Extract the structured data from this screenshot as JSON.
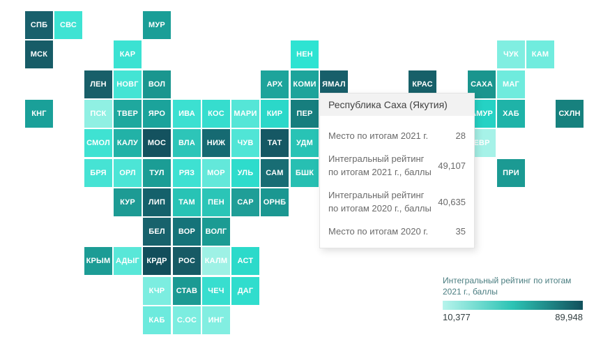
{
  "chart_data": {
    "type": "heatmap",
    "subtype": "tile-grid-cartogram",
    "title": "",
    "legend": {
      "label": "Интегральный рейтинг по итогам 2021 г., баллы",
      "min": "10,377",
      "max": "89,948",
      "position": "bottom-right",
      "gradient": [
        "#b7f4ec",
        "#2cc3b4",
        "#12505c"
      ]
    },
    "encoding": "tile color encodes the 2021 integral rating from min (light) to max (dark)",
    "highlighted_region": {
      "name": "Республика Саха (Якутия)",
      "rank_2021": "28",
      "rating_2021": "49,107",
      "rating_2020": "40,635",
      "rank_2020": "35"
    }
  },
  "map": {
    "tiles": [
      {
        "code": "СПБ",
        "col": 0,
        "row": 0,
        "color": "#19606c"
      },
      {
        "code": "СВС",
        "col": 1,
        "row": 0,
        "color": "#3ee3d3"
      },
      {
        "code": "МУР",
        "col": 4,
        "row": 0,
        "color": "#1a9e97"
      },
      {
        "code": "МСК",
        "col": 0,
        "row": 1,
        "color": "#175c67"
      },
      {
        "code": "КАР",
        "col": 3,
        "row": 1,
        "color": "#3be2d2"
      },
      {
        "code": "НЕН",
        "col": 9,
        "row": 1,
        "color": "#2ee3d2"
      },
      {
        "code": "ЧУК",
        "col": 16,
        "row": 1,
        "color": "#80eee1"
      },
      {
        "code": "КАМ",
        "col": 17,
        "row": 1,
        "color": "#70ecde"
      },
      {
        "code": "ЛЕН",
        "col": 2,
        "row": 2,
        "color": "#185f69"
      },
      {
        "code": "НОВГ",
        "col": 3,
        "row": 2,
        "color": "#44e4d4"
      },
      {
        "code": "ВОЛ",
        "col": 4,
        "row": 2,
        "color": "#1a968f"
      },
      {
        "code": "АРХ",
        "col": 8,
        "row": 2,
        "color": "#1da49b"
      },
      {
        "code": "КОМИ",
        "col": 9,
        "row": 2,
        "color": "#1da49b"
      },
      {
        "code": "ЯМАЛ",
        "col": 10,
        "row": 2,
        "color": "#185f6a"
      },
      {
        "code": "КРАС",
        "col": 13,
        "row": 2,
        "color": "#176069"
      },
      {
        "code": "САХА",
        "col": 15,
        "row": 2,
        "color": "#1a958e"
      },
      {
        "code": "МАГ",
        "col": 16,
        "row": 2,
        "color": "#6febdd"
      },
      {
        "code": "КНГ",
        "col": 0,
        "row": 3,
        "color": "#1aa099"
      },
      {
        "code": "ПСК",
        "col": 2,
        "row": 3,
        "color": "#90f0e3"
      },
      {
        "code": "ТВЕР",
        "col": 3,
        "row": 3,
        "color": "#1fa89e"
      },
      {
        "code": "ЯРО",
        "col": 4,
        "row": 3,
        "color": "#1ba39b"
      },
      {
        "code": "ИВА",
        "col": 5,
        "row": 3,
        "color": "#3ce0d1"
      },
      {
        "code": "КОС",
        "col": 6,
        "row": 3,
        "color": "#36ddce"
      },
      {
        "code": "МАРИ",
        "col": 7,
        "row": 3,
        "color": "#55e6d7"
      },
      {
        "code": "КИР",
        "col": 8,
        "row": 3,
        "color": "#2bd8c9"
      },
      {
        "code": "ПЕР",
        "col": 9,
        "row": 3,
        "color": "#177e7e"
      },
      {
        "code": "АМУР",
        "col": 15,
        "row": 3,
        "color": "#25d2c4"
      },
      {
        "code": "ХАБ",
        "col": 16,
        "row": 3,
        "color": "#1fb3a8"
      },
      {
        "code": "СХЛН",
        "col": 18,
        "row": 3,
        "color": "#17817e"
      },
      {
        "code": "СМОЛ",
        "col": 2,
        "row": 4,
        "color": "#3fe2d2"
      },
      {
        "code": "КАЛУ",
        "col": 3,
        "row": 4,
        "color": "#22b2a7"
      },
      {
        "code": "МОС",
        "col": 4,
        "row": 4,
        "color": "#14525f"
      },
      {
        "code": "ВЛА",
        "col": 5,
        "row": 4,
        "color": "#2dc5b8"
      },
      {
        "code": "НИЖ",
        "col": 6,
        "row": 4,
        "color": "#166a72"
      },
      {
        "code": "ЧУВ",
        "col": 7,
        "row": 4,
        "color": "#50e5d6"
      },
      {
        "code": "ТАТ",
        "col": 8,
        "row": 4,
        "color": "#165864"
      },
      {
        "code": "УДМ",
        "col": 9,
        "row": 4,
        "color": "#28c3b5"
      },
      {
        "code": "ЕВР",
        "col": 15,
        "row": 4,
        "color": "#a6f2e8"
      },
      {
        "code": "БРЯ",
        "col": 2,
        "row": 5,
        "color": "#46e3d4"
      },
      {
        "code": "ОРЛ",
        "col": 3,
        "row": 5,
        "color": "#4ce5d6"
      },
      {
        "code": "ТУЛ",
        "col": 4,
        "row": 5,
        "color": "#1b9d95"
      },
      {
        "code": "РЯЗ",
        "col": 5,
        "row": 5,
        "color": "#3ee1d2"
      },
      {
        "code": "МОР",
        "col": 6,
        "row": 5,
        "color": "#63e8da"
      },
      {
        "code": "УЛЬ",
        "col": 7,
        "row": 5,
        "color": "#2edccc"
      },
      {
        "code": "САМ",
        "col": 8,
        "row": 5,
        "color": "#186d74"
      },
      {
        "code": "БШК",
        "col": 9,
        "row": 5,
        "color": "#27bfb2"
      },
      {
        "code": "ПРИ",
        "col": 16,
        "row": 5,
        "color": "#1b9a93"
      },
      {
        "code": "КУР",
        "col": 3,
        "row": 6,
        "color": "#1d9b94"
      },
      {
        "code": "ЛИП",
        "col": 4,
        "row": 6,
        "color": "#15616b"
      },
      {
        "code": "ТАМ",
        "col": 5,
        "row": 6,
        "color": "#28c3b5"
      },
      {
        "code": "ПЕН",
        "col": 6,
        "row": 6,
        "color": "#2bc5b7"
      },
      {
        "code": "САР",
        "col": 7,
        "row": 6,
        "color": "#1f9e97"
      },
      {
        "code": "ОРНБ",
        "col": 8,
        "row": 6,
        "color": "#1b9791"
      },
      {
        "code": "БЕЛ",
        "col": 4,
        "row": 7,
        "color": "#18626c"
      },
      {
        "code": "ВОР",
        "col": 5,
        "row": 7,
        "color": "#157379"
      },
      {
        "code": "ВОЛГ",
        "col": 6,
        "row": 7,
        "color": "#1b9b93"
      },
      {
        "code": "КРЫМ",
        "col": 2,
        "row": 8,
        "color": "#1c9c95"
      },
      {
        "code": "АДЫГ",
        "col": 3,
        "row": 8,
        "color": "#59e7d8"
      },
      {
        "code": "КРДР",
        "col": 4,
        "row": 8,
        "color": "#124e5b"
      },
      {
        "code": "РОС",
        "col": 5,
        "row": 8,
        "color": "#175a65"
      },
      {
        "code": "КАЛМ",
        "col": 6,
        "row": 8,
        "color": "#9ef1e5"
      },
      {
        "code": "АСТ",
        "col": 7,
        "row": 8,
        "color": "#2cdaca"
      },
      {
        "code": "КЧР",
        "col": 4,
        "row": 9,
        "color": "#7cede0"
      },
      {
        "code": "СТАВ",
        "col": 5,
        "row": 9,
        "color": "#1b9a93"
      },
      {
        "code": "ЧЕЧ",
        "col": 6,
        "row": 9,
        "color": "#38decf"
      },
      {
        "code": "ДАГ",
        "col": 7,
        "row": 9,
        "color": "#30ddcd"
      },
      {
        "code": "КАБ",
        "col": 4,
        "row": 10,
        "color": "#6ceadd"
      },
      {
        "code": "С.ОС",
        "col": 5,
        "row": 10,
        "color": "#7cede0"
      },
      {
        "code": "ИНГ",
        "col": 6,
        "row": 10,
        "color": "#82eee1"
      }
    ]
  },
  "tooltip": {
    "title": "Республика Саха (Якутия)",
    "rows": [
      {
        "label": "Место по итогам 2021 г.",
        "value": "28"
      },
      {
        "label": "Интегральный рейтинг по итогам 2021 г., баллы",
        "value": "49,107"
      },
      {
        "label": "Интегральный рейтинг по итогам 2020 г., баллы",
        "value": "40,635"
      },
      {
        "label": "Место по итогам 2020 г.",
        "value": "35"
      }
    ]
  },
  "legend": {
    "title_line1": "Интегральный рейтинг по итогам",
    "title_line2": "2021 г., баллы",
    "min": "10,377",
    "max": "89,948",
    "gradient_start": "#b7f4ec",
    "gradient_mid": "#2cc3b4",
    "gradient_end": "#12505c"
  }
}
